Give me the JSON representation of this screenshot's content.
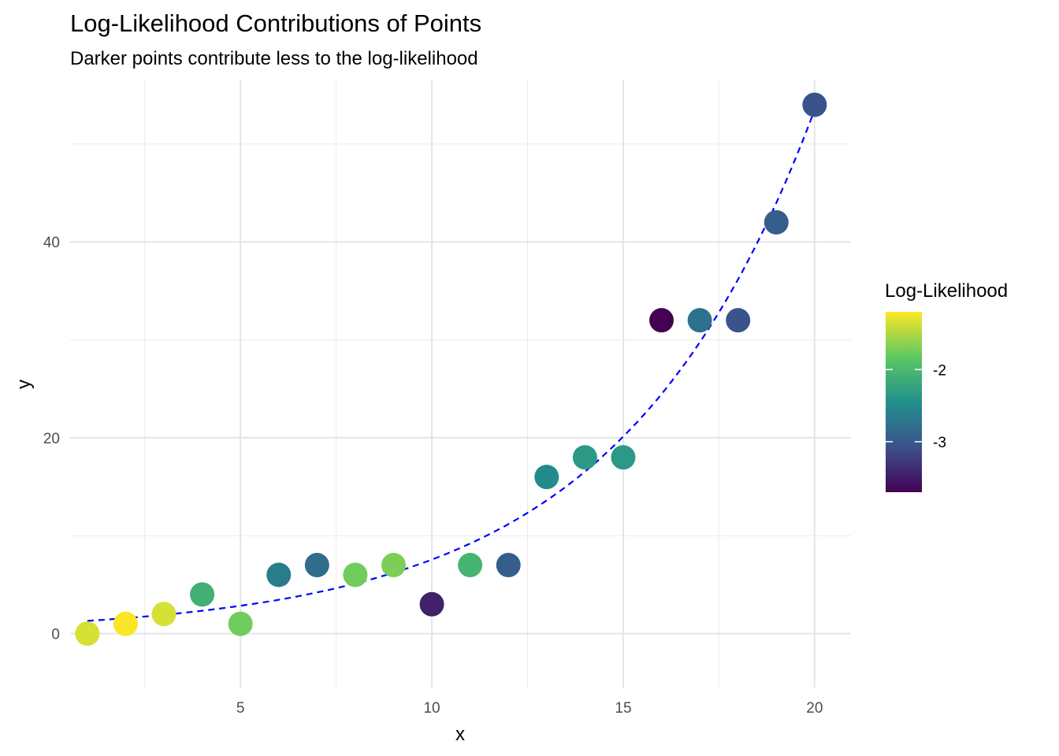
{
  "chart_data": {
    "type": "scatter",
    "title": "Log-Likelihood Contributions of Points",
    "subtitle": "Darker points contribute less to the log-likelihood",
    "xlabel": "x",
    "ylabel": "y",
    "xlim": [
      0.55,
      20.95
    ],
    "ylim": [
      -5.5,
      56.5
    ],
    "x_ticks": [
      5,
      10,
      15,
      20
    ],
    "y_ticks": [
      0,
      20,
      40
    ],
    "grid": true,
    "legend_position": "right",
    "points": [
      {
        "x": 1,
        "y": 0,
        "loglik": -1.35
      },
      {
        "x": 2,
        "y": 1,
        "loglik": -1.22
      },
      {
        "x": 3,
        "y": 2,
        "loglik": -1.35
      },
      {
        "x": 4,
        "y": 4,
        "loglik": -2.1
      },
      {
        "x": 5,
        "y": 1,
        "loglik": -1.75
      },
      {
        "x": 6,
        "y": 6,
        "loglik": -2.65
      },
      {
        "x": 7,
        "y": 7,
        "loglik": -2.8
      },
      {
        "x": 8,
        "y": 6,
        "loglik": -1.75
      },
      {
        "x": 9,
        "y": 7,
        "loglik": -1.7
      },
      {
        "x": 10,
        "y": 3,
        "loglik": -3.45
      },
      {
        "x": 11,
        "y": 7,
        "loglik": -2.05
      },
      {
        "x": 12,
        "y": 7,
        "loglik": -2.95
      },
      {
        "x": 13,
        "y": 16,
        "loglik": -2.5
      },
      {
        "x": 14,
        "y": 18,
        "loglik": -2.35
      },
      {
        "x": 15,
        "y": 18,
        "loglik": -2.35
      },
      {
        "x": 16,
        "y": 32,
        "loglik": -3.7
      },
      {
        "x": 17,
        "y": 32,
        "loglik": -2.75
      },
      {
        "x": 18,
        "y": 32,
        "loglik": -3.05
      },
      {
        "x": 19,
        "y": 42,
        "loglik": -2.95
      },
      {
        "x": 20,
        "y": 54,
        "loglik": -3.05
      }
    ],
    "fitted_curve": {
      "style": "dashed",
      "color": "#0000FF",
      "x_range": [
        1,
        20
      ],
      "y_at_x1": 1.3,
      "y_at_x20": 53.5
    },
    "legend": {
      "title": "Log-Likelihood",
      "type": "colorbar",
      "range": [
        -3.7,
        -1.2
      ],
      "ticks": [
        -2,
        -3
      ],
      "tick_labels": [
        "-2",
        "-3"
      ],
      "palette": [
        "#440154",
        "#3B528B",
        "#21908C",
        "#5DC863",
        "#FDE725"
      ]
    }
  }
}
